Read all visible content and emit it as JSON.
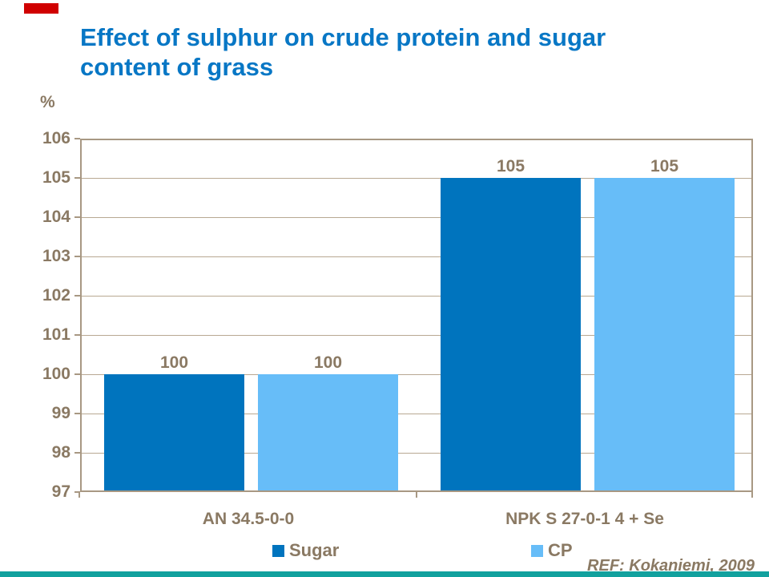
{
  "slide": {
    "title_lines": [
      "Effect of sulphur on crude protein and sugar",
      "content of grass"
    ],
    "ref": "REF: Kokaniemi, 2009",
    "accent_red_color": "#d00000",
    "footer_teal_color": "#12a19e"
  },
  "chart_data": {
    "type": "bar",
    "title": "Effect of sulphur on crude protein and sugar content of grass",
    "unit_label": "%",
    "xlabel": "",
    "ylabel": "%",
    "categories": [
      "AN 34.5-0-0",
      "NPK S 27-0-1 4 + Se"
    ],
    "series": [
      {
        "name": "Sugar",
        "color": "#0074be",
        "values": [
          100,
          105
        ]
      },
      {
        "name": "CP",
        "color": "#67bdf8",
        "values": [
          100,
          105
        ]
      }
    ],
    "ylim": [
      97,
      106
    ],
    "ytick_step": 1,
    "yticks": [
      97,
      98,
      99,
      100,
      101,
      102,
      103,
      104,
      105,
      106
    ],
    "grid": true,
    "bar_labels": true,
    "legend_position": "bottom",
    "text_color": "#8a7963",
    "axis_color": "#a89883",
    "title_color": "#0877c5"
  }
}
